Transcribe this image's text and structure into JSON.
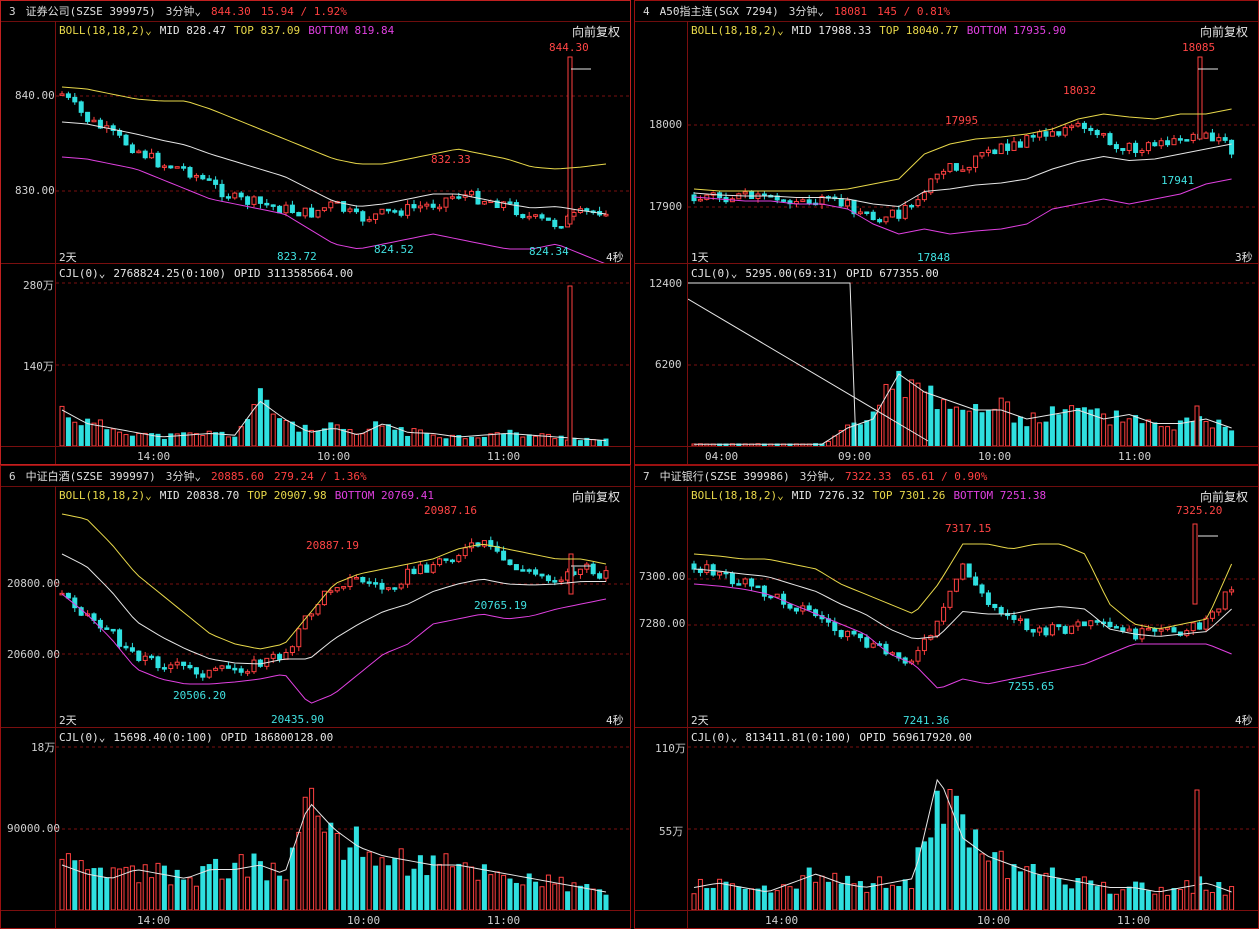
{
  "panels": [
    {
      "num": "3",
      "name": "证券公司",
      "code": "(SZSE 399975)",
      "period": "3分钟",
      "price": "844.30",
      "change": "15.94 / 1.92%",
      "boll": {
        "label": "BOLL(18,18,2)",
        "mid": "MID 828.47",
        "top": "TOP 837.09",
        "bottom": "BOTTOM 819.84"
      },
      "fq": "向前复权",
      "price_ticks": [
        "840.00",
        "830.00"
      ],
      "annotations": [
        {
          "text": "844.30",
          "color": "red"
        },
        {
          "text": "832.33",
          "color": "red"
        },
        {
          "text": "823.72",
          "color": "cyan"
        },
        {
          "text": "824.52",
          "color": "cyan"
        },
        {
          "text": "824.34",
          "color": "cyan"
        }
      ],
      "left_corner": "2天",
      "right_corner": "4秒",
      "cjl": {
        "label": "CJL(0)",
        "value": "2768824.25(0:100)",
        "opid": "OPID 3113585664.00"
      },
      "vol_ticks": [
        "280万",
        "140万"
      ],
      "time_ticks": [
        "14:00",
        "10:00",
        "11:00"
      ]
    },
    {
      "num": "4",
      "name": "A50指主连",
      "code": "(SGX 7294)",
      "period": "3分钟",
      "price": "18081",
      "change": "145 / 0.81%",
      "boll": {
        "label": "BOLL(18,18,2)",
        "mid": "MID 17988.33",
        "top": "TOP 18040.77",
        "bottom": "BOTTOM 17935.90"
      },
      "fq": "向前复权",
      "price_ticks": [
        "18000",
        "17900"
      ],
      "annotations": [
        {
          "text": "18085",
          "color": "red"
        },
        {
          "text": "18032",
          "color": "red"
        },
        {
          "text": "17995",
          "color": "red"
        },
        {
          "text": "17941",
          "color": "cyan"
        },
        {
          "text": "17848",
          "color": "cyan"
        }
      ],
      "left_corner": "1天",
      "right_corner": "3秒",
      "cjl": {
        "label": "CJL(0)",
        "value": "5295.00(69:31)",
        "opid": "OPID 677355.00"
      },
      "vol_ticks": [
        "12400",
        "6200"
      ],
      "time_ticks": [
        "04:00",
        "09:00",
        "10:00",
        "11:00"
      ]
    },
    {
      "num": "6",
      "name": "中证白酒",
      "code": "(SZSE 399997)",
      "period": "3分钟",
      "price": "20885.60",
      "change": "279.24 / 1.36%",
      "boll": {
        "label": "BOLL(18,18,2)",
        "mid": "MID 20838.70",
        "top": "TOP 20907.98",
        "bottom": "BOTTOM 20769.41"
      },
      "fq": "向前复权",
      "price_ticks": [
        "20800.00",
        "20600.00"
      ],
      "annotations": [
        {
          "text": "20987.16",
          "color": "red"
        },
        {
          "text": "20887.19",
          "color": "red"
        },
        {
          "text": "20765.19",
          "color": "cyan"
        },
        {
          "text": "20506.20",
          "color": "cyan"
        },
        {
          "text": "20435.90",
          "color": "cyan"
        }
      ],
      "left_corner": "2天",
      "right_corner": "4秒",
      "cjl": {
        "label": "CJL(0)",
        "value": "15698.40(0:100)",
        "opid": "OPID 186800128.00"
      },
      "vol_ticks": [
        "18万",
        "90000.00"
      ],
      "time_ticks": [
        "14:00",
        "10:00",
        "11:00"
      ]
    },
    {
      "num": "7",
      "name": "中证银行",
      "code": "(SZSE 399986)",
      "period": "3分钟",
      "price": "7322.33",
      "change": "65.61 / 0.90%",
      "boll": {
        "label": "BOLL(18,18,2)",
        "mid": "MID 7276.32",
        "top": "TOP 7301.26",
        "bottom": "BOTTOM 7251.38"
      },
      "fq": "向前复权",
      "price_ticks": [
        "7300.00",
        "7280.00"
      ],
      "annotations": [
        {
          "text": "7325.20",
          "color": "red"
        },
        {
          "text": "7317.15",
          "color": "red"
        },
        {
          "text": "7255.65",
          "color": "cyan"
        },
        {
          "text": "7241.36",
          "color": "cyan"
        }
      ],
      "left_corner": "2天",
      "right_corner": "4秒",
      "cjl": {
        "label": "CJL(0)",
        "value": "813411.81(0:100)",
        "opid": "OPID 569617920.00"
      },
      "vol_ticks": [
        "110万",
        "55万"
      ],
      "time_ticks": [
        "14:00",
        "10:00",
        "11:00"
      ]
    }
  ],
  "icons": {
    "dropdown": "chevron-down-icon"
  }
}
